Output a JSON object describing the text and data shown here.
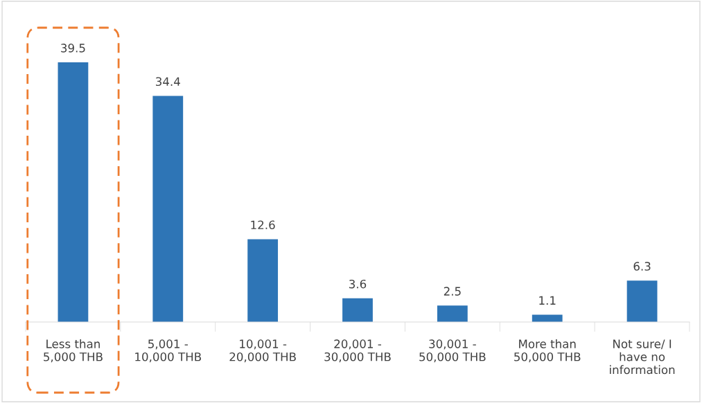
{
  "chart_data": {
    "type": "bar",
    "categories": [
      "Less than\n5,000 THB",
      "5,001 -\n10,000 THB",
      "10,001 -\n20,000 THB",
      "20,001 -\n30,000 THB",
      "30,001 -\n50,000 THB",
      "More than\n50,000 THB",
      "Not sure/ I\nhave no\ninformation"
    ],
    "values": [
      39.5,
      34.4,
      12.6,
      3.6,
      2.5,
      1.1,
      6.3
    ],
    "color": "#2e75b6",
    "data_labels": true,
    "grid": false,
    "legend": false,
    "tick_labels": "x"
  }
}
